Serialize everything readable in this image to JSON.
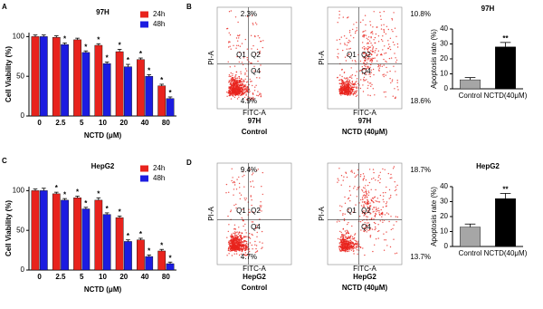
{
  "chart_data": [
    {
      "type": "bar",
      "panel_label": "A",
      "title": "97H",
      "xlabel": "NCTD (μM)",
      "ylabel": "Cell Viability (%)",
      "categories": [
        "0",
        "2.5",
        "5",
        "10",
        "20",
        "40",
        "80"
      ],
      "series": [
        {
          "name": "24h",
          "color": "#e8231d",
          "values": [
            100,
            99,
            96,
            89,
            81,
            71,
            38
          ],
          "errors": [
            2,
            2,
            2,
            2,
            3,
            2,
            2
          ],
          "markers": [
            null,
            null,
            null,
            "*",
            "*",
            "*",
            "*"
          ]
        },
        {
          "name": "48h",
          "color": "#1c1ce0",
          "values": [
            100,
            90,
            80,
            66,
            62,
            50,
            22
          ],
          "errors": [
            2,
            2,
            2,
            2,
            3,
            2,
            2
          ],
          "markers": [
            null,
            "*",
            "*",
            "*",
            "*",
            "*",
            "*"
          ]
        }
      ],
      "ylim": [
        0,
        105
      ],
      "yticks": [
        0,
        50,
        100
      ],
      "legend": "top-right"
    },
    {
      "type": "bar",
      "title": "97H",
      "ylabel": "Apoptosis rate (%)",
      "categories": [
        "Control",
        "NCTD(40μM)"
      ],
      "values": [
        6,
        28
      ],
      "errors": [
        1.5,
        3
      ],
      "colors": [
        "#a6a6a6",
        "#000000"
      ],
      "markers": [
        null,
        "**"
      ],
      "ylim": [
        0,
        40
      ],
      "yticks": [
        0,
        10,
        20,
        30,
        40
      ]
    },
    {
      "type": "bar",
      "panel_label": "C",
      "title": "HepG2",
      "xlabel": "NCTD (μM)",
      "ylabel": "Cell Viability (%)",
      "categories": [
        "0",
        "2.5",
        "5",
        "10",
        "20",
        "40",
        "80"
      ],
      "series": [
        {
          "name": "24h",
          "color": "#e8231d",
          "values": [
            100,
            96,
            91,
            88,
            66,
            38,
            24
          ],
          "errors": [
            2,
            2,
            2,
            3,
            2,
            2,
            2
          ],
          "markers": [
            null,
            "*",
            "*",
            "*",
            "*",
            "*",
            "*"
          ]
        },
        {
          "name": "48h",
          "color": "#1c1ce0",
          "values": [
            100,
            88,
            77,
            70,
            36,
            17,
            8
          ],
          "errors": [
            3,
            2,
            2,
            2,
            2,
            2,
            2
          ],
          "markers": [
            null,
            "*",
            "*",
            "*",
            "*",
            "*",
            "*"
          ]
        }
      ],
      "ylim": [
        0,
        105
      ],
      "yticks": [
        0,
        50,
        100
      ],
      "legend": "top-right"
    },
    {
      "type": "bar",
      "title": "HepG2",
      "ylabel": "Apoptosis rate (%)",
      "categories": [
        "Control",
        "NCTD(40μM)"
      ],
      "values": [
        13,
        32
      ],
      "errors": [
        2,
        3.5
      ],
      "colors": [
        "#a6a6a6",
        "#000000"
      ],
      "markers": [
        null,
        "**"
      ],
      "ylim": [
        0,
        40
      ],
      "yticks": [
        0,
        10,
        20,
        30,
        40
      ]
    }
  ],
  "flow_panels": [
    {
      "panel_label": "B",
      "plots": [
        {
          "x_label": "FITC-A",
          "y_label": "PI-A",
          "quadrant_names": [
            "Q1",
            "Q2",
            "Q4"
          ],
          "upper_left": "2.3%",
          "lower_left": "4.9%",
          "caption": [
            "97H",
            "Control"
          ]
        },
        {
          "x_label": "FITC-A",
          "y_label": "PI-A",
          "quadrant_names": [
            "Q1",
            "Q2",
            "Q4"
          ],
          "upper_right": "10.8%",
          "lower_right": "18.6%",
          "caption": [
            "97H",
            "NCTD (40μM)"
          ]
        }
      ]
    },
    {
      "panel_label": "D",
      "plots": [
        {
          "x_label": "FITC-A",
          "y_label": "PI-A",
          "quadrant_names": [
            "Q1",
            "Q2",
            "Q4"
          ],
          "upper_left": "9.4%",
          "lower_left": "4.7%",
          "caption": [
            "HepG2",
            "Control"
          ]
        },
        {
          "x_label": "FITC-A",
          "y_label": "PI-A",
          "quadrant_names": [
            "Q1",
            "Q2",
            "Q4"
          ],
          "upper_right": "18.7%",
          "lower_right": "13.7%",
          "caption": [
            "HepG2",
            "NCTD (40μM)"
          ]
        }
      ]
    }
  ]
}
